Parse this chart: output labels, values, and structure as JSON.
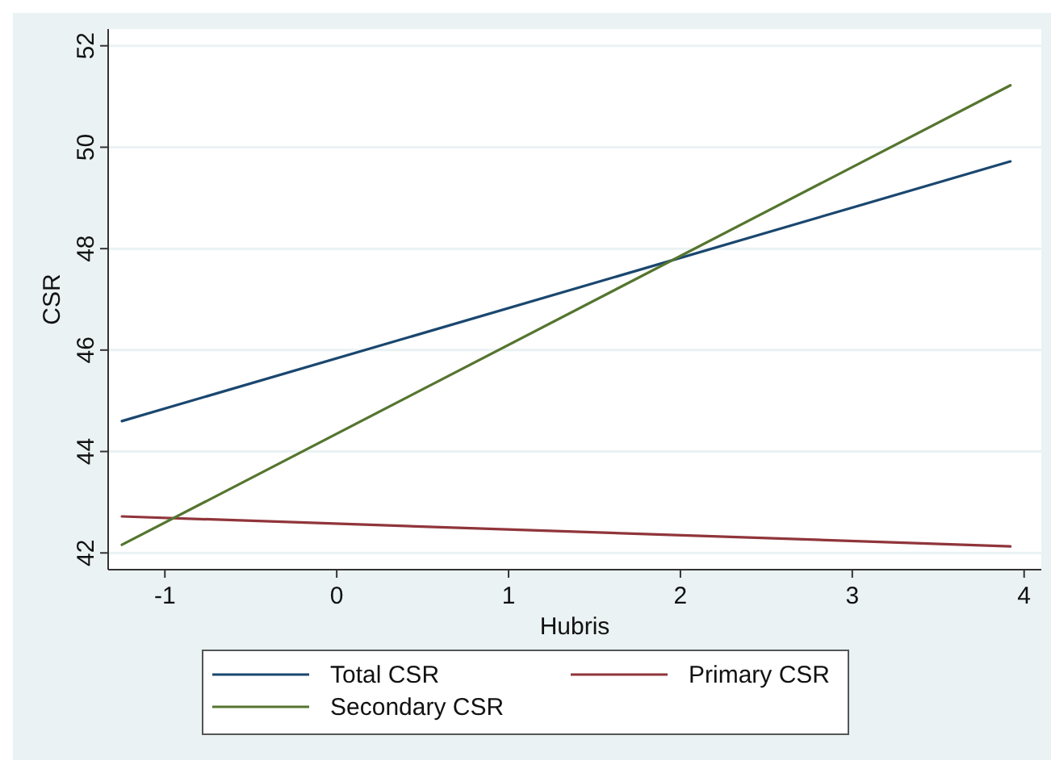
{
  "chart_data": {
    "type": "line",
    "xlabel": "Hubris",
    "ylabel": "CSR",
    "x": [
      -1.25,
      3.92
    ],
    "series": [
      {
        "name": "Total CSR",
        "color": "#1a476f",
        "values": [
          44.6,
          49.72
        ]
      },
      {
        "name": "Primary CSR",
        "color": "#90353b",
        "values": [
          42.72,
          42.13
        ]
      },
      {
        "name": "Secondary CSR",
        "color": "#55752f",
        "values": [
          42.16,
          51.22
        ]
      }
    ],
    "xlim": [
      -1.33,
      4.1
    ],
    "ylim": [
      41.67,
      52.33
    ],
    "xticks": [
      -1,
      0,
      1,
      2,
      3,
      4
    ],
    "yticks": [
      42,
      44,
      46,
      48,
      50,
      52
    ],
    "grid": "y",
    "legend": "bottom",
    "marker": "none",
    "line_style": "solid"
  }
}
